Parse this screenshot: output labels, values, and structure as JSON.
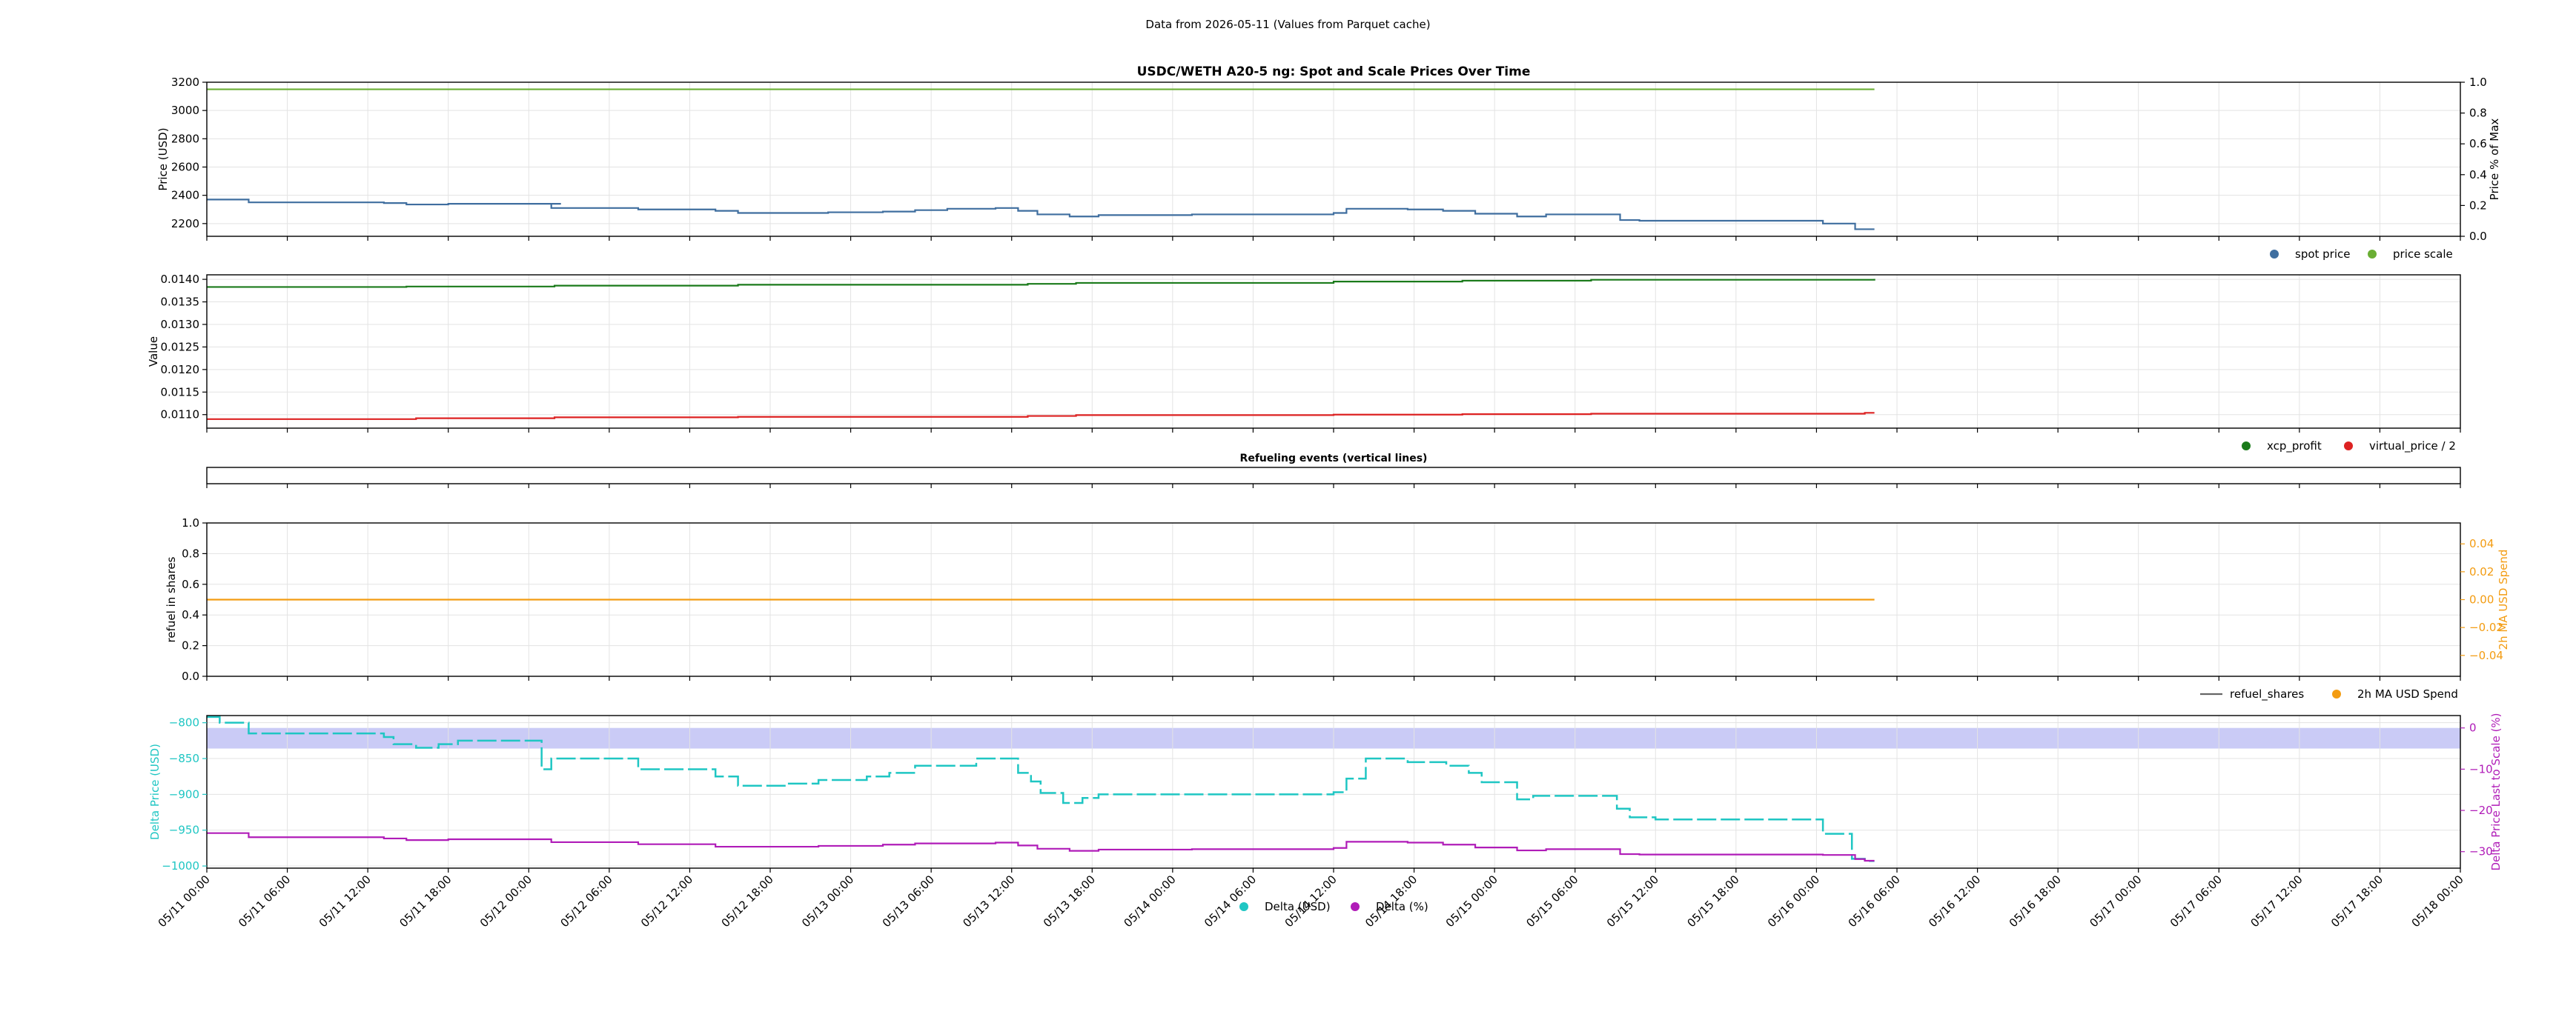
{
  "header": {
    "subtitle": "Data from 2026-05-11 (Values from Parquet cache)"
  },
  "colors": {
    "spot": "#3f6e9f",
    "scale": "#6aae34",
    "xcp": "#1a7a1a",
    "virtual": "#dd2222",
    "refuel": "#666666",
    "usd_spend": "#f39c12",
    "delta_usd": "#1fc6c3",
    "delta_pct": "#b01cb8",
    "band": "#c7c8f6"
  },
  "chart_data": [
    {
      "type": "line",
      "title": "USDC/WETH A20-5 ng: Spot and Scale Prices Over Time",
      "xlabel": "",
      "ylabel": "Price (USD)",
      "ylabel_right": "Price % of Max",
      "xlim": [
        0,
        7
      ],
      "ylim": [
        2110,
        3200
      ],
      "ylim_right": [
        0,
        1
      ],
      "yticks": [
        2200,
        2400,
        2600,
        2800,
        3000,
        3200
      ],
      "yticks_right": [
        0.0,
        0.2,
        0.4,
        0.6,
        0.8,
        1.0
      ],
      "grid": true,
      "legend": {
        "placement": "below-right",
        "entries": [
          {
            "label": "spot price",
            "color": "#3f6e9f"
          },
          {
            "label": "price scale",
            "color": "#6aae34"
          }
        ]
      },
      "series": [
        {
          "name": "spot price",
          "axis": "left",
          "step": true,
          "points": [
            [
              0,
              2370
            ],
            [
              0.13,
              2350
            ],
            [
              0.55,
              2345
            ],
            [
              0.62,
              2335
            ],
            [
              0.75,
              2340
            ],
            [
              1.1,
              2340
            ],
            [
              1.07,
              2310
            ],
            [
              1.34,
              2300
            ],
            [
              1.58,
              2290
            ],
            [
              1.65,
              2275
            ],
            [
              1.9,
              2275
            ],
            [
              1.93,
              2280
            ],
            [
              2.1,
              2285
            ],
            [
              2.2,
              2295
            ],
            [
              2.3,
              2305
            ],
            [
              2.45,
              2310
            ],
            [
              2.52,
              2290
            ],
            [
              2.58,
              2265
            ],
            [
              2.68,
              2250
            ],
            [
              2.77,
              2260
            ],
            [
              3.06,
              2265
            ],
            [
              3.5,
              2275
            ],
            [
              3.54,
              2305
            ],
            [
              3.73,
              2300
            ],
            [
              3.84,
              2290
            ],
            [
              3.94,
              2270
            ],
            [
              4.07,
              2250
            ],
            [
              4.16,
              2265
            ],
            [
              4.39,
              2225
            ],
            [
              4.45,
              2220
            ],
            [
              5.02,
              2200
            ],
            [
              5.12,
              2160
            ],
            [
              5.18,
              2160
            ]
          ]
        },
        {
          "name": "price scale",
          "axis": "left",
          "step": false,
          "points": [
            [
              0,
              3150
            ],
            [
              5.18,
              3150
            ]
          ]
        }
      ]
    },
    {
      "type": "line",
      "title": "",
      "xlabel": "",
      "ylabel": "Value",
      "xlim": [
        0,
        7
      ],
      "ylim": [
        0.0107,
        0.0141
      ],
      "yticks": [
        0.011,
        0.0115,
        0.012,
        0.0125,
        0.013,
        0.0135,
        0.014
      ],
      "grid": true,
      "legend": {
        "placement": "below-right",
        "entries": [
          {
            "label": "xcp_profit",
            "color": "#1a7a1a"
          },
          {
            "label": "virtual_price / 2",
            "color": "#dd2222"
          }
        ]
      },
      "series": [
        {
          "name": "xcp_profit",
          "step": true,
          "points": [
            [
              0,
              0.01383
            ],
            [
              0.62,
              0.01384
            ],
            [
              1.08,
              0.01386
            ],
            [
              1.65,
              0.01388
            ],
            [
              2.55,
              0.0139
            ],
            [
              2.7,
              0.01392
            ],
            [
              3.5,
              0.01395
            ],
            [
              3.9,
              0.01397
            ],
            [
              4.3,
              0.01399
            ],
            [
              5.18,
              0.01401
            ]
          ]
        },
        {
          "name": "virtual_price / 2",
          "step": true,
          "points": [
            [
              0,
              0.0109
            ],
            [
              0.65,
              0.01092
            ],
            [
              1.08,
              0.01094
            ],
            [
              1.65,
              0.01095
            ],
            [
              2.55,
              0.01097
            ],
            [
              2.7,
              0.01099
            ],
            [
              3.5,
              0.011
            ],
            [
              3.9,
              0.01101
            ],
            [
              4.3,
              0.01102
            ],
            [
              5.15,
              0.01104
            ],
            [
              5.18,
              0.01104
            ]
          ]
        }
      ]
    },
    {
      "type": "line",
      "title": "Refueling events (vertical lines)",
      "xlabel": "",
      "ylabel": "",
      "xlim": [
        0,
        7
      ],
      "ylim": [
        0,
        1
      ],
      "grid": false,
      "series": []
    },
    {
      "type": "line",
      "title": "",
      "xlabel": "",
      "ylabel": "refuel in shares",
      "ylabel_right": "2h MA USD Spend",
      "xlim": [
        0,
        7
      ],
      "ylim": [
        0,
        1
      ],
      "ylim_right": [
        -0.055,
        0.055
      ],
      "yticks": [
        0.0,
        0.2,
        0.4,
        0.6,
        0.8,
        1.0
      ],
      "yticks_right": [
        -0.04,
        -0.02,
        0.0,
        0.02,
        0.04
      ],
      "grid": true,
      "legend": {
        "placement": "below-right",
        "entries": [
          {
            "label": "refuel_shares",
            "color": "#666666"
          },
          {
            "label": "2h MA USD Spend",
            "color": "#f39c12"
          }
        ]
      },
      "series": [
        {
          "name": "2h MA USD Spend",
          "axis": "right",
          "step": false,
          "points": [
            [
              0,
              0.0
            ],
            [
              5.18,
              0.0
            ]
          ]
        }
      ]
    },
    {
      "type": "line",
      "title": "",
      "xlabel": "",
      "ylabel": "Delta Price (USD)",
      "ylabel_right": "Delta Price Last to Scale (%)",
      "xlim": [
        0,
        7
      ],
      "ylim": [
        -1003,
        -790
      ],
      "ylim_right": [
        -34,
        3
      ],
      "yticks": [
        -800,
        -850,
        -900,
        -950,
        -1000
      ],
      "yticks_right": [
        0,
        -10,
        -20,
        -30
      ],
      "band_right": [
        0,
        -5
      ],
      "grid": true,
      "legend": {
        "placement": "bottom-center",
        "entries": [
          {
            "label": "Delta (USD)",
            "color": "#1fc6c3"
          },
          {
            "label": "Delta (%)",
            "color": "#b01cb8"
          }
        ]
      },
      "series": [
        {
          "name": "Delta (USD)",
          "axis": "left",
          "step": true,
          "points": [
            [
              0,
              -792
            ],
            [
              0.04,
              -800
            ],
            [
              0.13,
              -815
            ],
            [
              0.55,
              -820
            ],
            [
              0.58,
              -830
            ],
            [
              0.65,
              -835
            ],
            [
              0.72,
              -830
            ],
            [
              0.78,
              -825
            ],
            [
              1.02,
              -825
            ],
            [
              1.04,
              -865
            ],
            [
              1.07,
              -850
            ],
            [
              1.3,
              -850
            ],
            [
              1.34,
              -865
            ],
            [
              1.58,
              -875
            ],
            [
              1.65,
              -888
            ],
            [
              1.78,
              -888
            ],
            [
              1.8,
              -885
            ],
            [
              1.9,
              -880
            ],
            [
              1.98,
              -880
            ],
            [
              2.05,
              -875
            ],
            [
              2.12,
              -870
            ],
            [
              2.2,
              -860
            ],
            [
              2.36,
              -860
            ],
            [
              2.39,
              -850
            ],
            [
              2.52,
              -870
            ],
            [
              2.56,
              -882
            ],
            [
              2.59,
              -898
            ],
            [
              2.66,
              -912
            ],
            [
              2.72,
              -905
            ],
            [
              2.77,
              -900
            ],
            [
              3.06,
              -900
            ],
            [
              3.5,
              -897
            ],
            [
              3.54,
              -878
            ],
            [
              3.6,
              -850
            ],
            [
              3.73,
              -855
            ],
            [
              3.85,
              -860
            ],
            [
              3.92,
              -870
            ],
            [
              3.96,
              -883
            ],
            [
              4.07,
              -907
            ],
            [
              4.12,
              -902
            ],
            [
              4.36,
              -902
            ],
            [
              4.38,
              -920
            ],
            [
              4.42,
              -932
            ],
            [
              4.5,
              -935
            ],
            [
              4.74,
              -935
            ],
            [
              4.95,
              -935
            ],
            [
              5.02,
              -955
            ],
            [
              5.11,
              -990
            ],
            [
              5.15,
              -993
            ],
            [
              5.18,
              -993
            ]
          ]
        },
        {
          "name": "Delta (%)",
          "axis": "right",
          "step": true,
          "points": [
            [
              0,
              -25.5
            ],
            [
              0.13,
              -26.5
            ],
            [
              0.55,
              -26.8
            ],
            [
              0.62,
              -27.2
            ],
            [
              0.75,
              -27.0
            ],
            [
              1.07,
              -27.7
            ],
            [
              1.34,
              -28.2
            ],
            [
              1.58,
              -28.8
            ],
            [
              1.9,
              -28.6
            ],
            [
              2.1,
              -28.3
            ],
            [
              2.2,
              -28.0
            ],
            [
              2.45,
              -27.8
            ],
            [
              2.52,
              -28.5
            ],
            [
              2.58,
              -29.3
            ],
            [
              2.68,
              -29.8
            ],
            [
              2.77,
              -29.5
            ],
            [
              3.06,
              -29.4
            ],
            [
              3.5,
              -29.1
            ],
            [
              3.54,
              -27.6
            ],
            [
              3.73,
              -27.8
            ],
            [
              3.84,
              -28.3
            ],
            [
              3.94,
              -29.0
            ],
            [
              4.07,
              -29.7
            ],
            [
              4.16,
              -29.4
            ],
            [
              4.39,
              -30.6
            ],
            [
              4.45,
              -30.7
            ],
            [
              5.02,
              -30.8
            ],
            [
              5.12,
              -31.8
            ],
            [
              5.15,
              -32.2
            ],
            [
              5.18,
              -32.2
            ]
          ]
        }
      ],
      "xtick_labels": [
        "05/11 00:00",
        "05/11 06:00",
        "05/11 12:00",
        "05/11 18:00",
        "05/12 00:00",
        "05/12 06:00",
        "05/12 12:00",
        "05/12 18:00",
        "05/13 00:00",
        "05/13 06:00",
        "05/13 12:00",
        "05/13 18:00",
        "05/14 00:00",
        "05/14 06:00",
        "05/14 12:00",
        "05/14 18:00",
        "05/15 00:00",
        "05/15 06:00",
        "05/15 12:00",
        "05/15 18:00",
        "05/16 00:00",
        "05/16 06:00",
        "05/16 12:00",
        "05/16 18:00",
        "05/17 00:00",
        "05/17 06:00",
        "05/17 12:00",
        "05/17 18:00",
        "05/18 00:00"
      ]
    }
  ]
}
